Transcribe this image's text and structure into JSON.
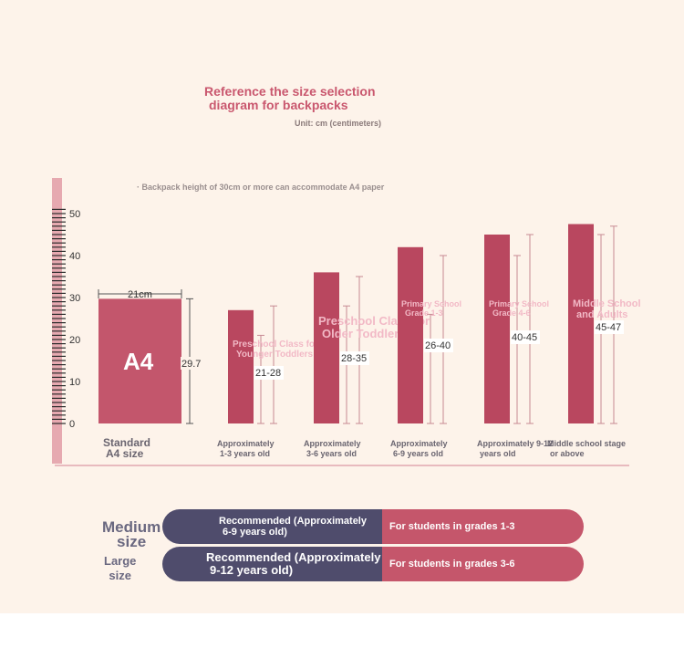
{
  "title_line1": "Reference the size selection",
  "title_line2": "diagram for backpacks",
  "unit": "Unit: cm (centimeters)",
  "note": "· Backpack height of 30cm or more can accommodate A4 paper",
  "colors": {
    "bar": "#c3566c",
    "bar_dark": "#b9475f",
    "pill_left": "#4f4c6c",
    "pill_right": "#c5566b",
    "ruler": "#e6a9b0",
    "overlay_text": "#f2b9c6"
  },
  "chart_data": {
    "type": "bar",
    "ylim": [
      0,
      50
    ],
    "yticks": [
      0,
      10,
      20,
      30,
      40,
      50
    ],
    "categories": [
      {
        "label1": "Standard",
        "label2": "A4 size",
        "value": 29.7,
        "bracket": "29.7",
        "inner": "A4",
        "width_label": "21cm"
      },
      {
        "label1": "Approximately",
        "label2": "1-3 years old",
        "value": 27,
        "bracket": "21-28",
        "range": [
          21,
          28
        ],
        "overlay1": "Preschool Class for",
        "overlay2": "Younger Toddlers"
      },
      {
        "label1": "Approximately",
        "label2": "3-6 years old",
        "value": 36,
        "bracket": "28-35",
        "range": [
          28,
          35
        ],
        "overlay1": "Preschool Class for",
        "overlay2": "Older Toddlers"
      },
      {
        "label1": "Approximately",
        "label2": "6-9 years old",
        "value": 42,
        "bracket": "26-40",
        "range": [
          26,
          40
        ],
        "overlay1": "Primary School",
        "overlay2": "Grade 1-3"
      },
      {
        "label1": "Approximately 9-12",
        "label2": "years old",
        "value": 45,
        "bracket": "40-45",
        "range": [
          40,
          45
        ],
        "overlay1": "Primary School",
        "overlay2": "Grade 4-6"
      },
      {
        "label1": "Middle school stage",
        "label2": "or above",
        "value": 47.5,
        "bracket": "45-47",
        "range": [
          45,
          47
        ],
        "overlay1": "Middle School",
        "overlay2": "and Adults"
      }
    ]
  },
  "recommend": [
    {
      "size1": "Medium",
      "size2": "size",
      "left1": "Recommended (Approximately",
      "left2": "6-9 years old)",
      "right": "For students in grades 1-3"
    },
    {
      "size1": "Large",
      "size2": "size",
      "left1": "Recommended (Approximately",
      "left2": "9-12 years old)",
      "right": "For students in grades 3-6"
    }
  ]
}
